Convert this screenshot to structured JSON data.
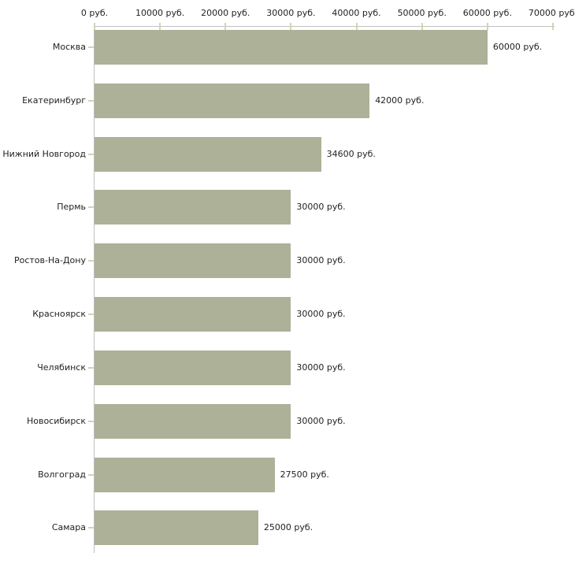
{
  "chart_data": {
    "type": "bar",
    "orientation": "horizontal",
    "title": "",
    "xlabel": "",
    "ylabel": "",
    "categories": [
      "Москва",
      "Екатеринбург",
      "Нижний Новгород",
      "Пермь",
      "Ростов-На-Дону",
      "Красноярск",
      "Челябинск",
      "Новосибирск",
      "Волгоград",
      "Самара"
    ],
    "values": [
      60000,
      42000,
      34600,
      30000,
      30000,
      30000,
      30000,
      30000,
      27500,
      25000
    ],
    "value_labels": [
      "60000 руб.",
      "42000 руб.",
      "34600 руб.",
      "30000 руб.",
      "30000 руб.",
      "30000 руб.",
      "30000 руб.",
      "30000 руб.",
      "27500 руб.",
      "25000 руб."
    ],
    "value_unit": "руб.",
    "x_axis": {
      "position": "top",
      "min": 0,
      "max": 70000,
      "ticks": [
        0,
        10000,
        20000,
        30000,
        40000,
        50000,
        60000,
        70000
      ],
      "tick_labels": [
        "0 руб.",
        "10000 руб.",
        "20000 руб.",
        "30000 руб.",
        "40000 руб.",
        "50000 руб.",
        "60000 руб.",
        "70000 руб."
      ]
    },
    "grid": false,
    "legend": false,
    "colors": {
      "bar": "#acb197",
      "axis_line": "#c0c0c0",
      "tick_mark": "#d6d2b2",
      "text": "#222222",
      "background": "#ffffff"
    }
  }
}
